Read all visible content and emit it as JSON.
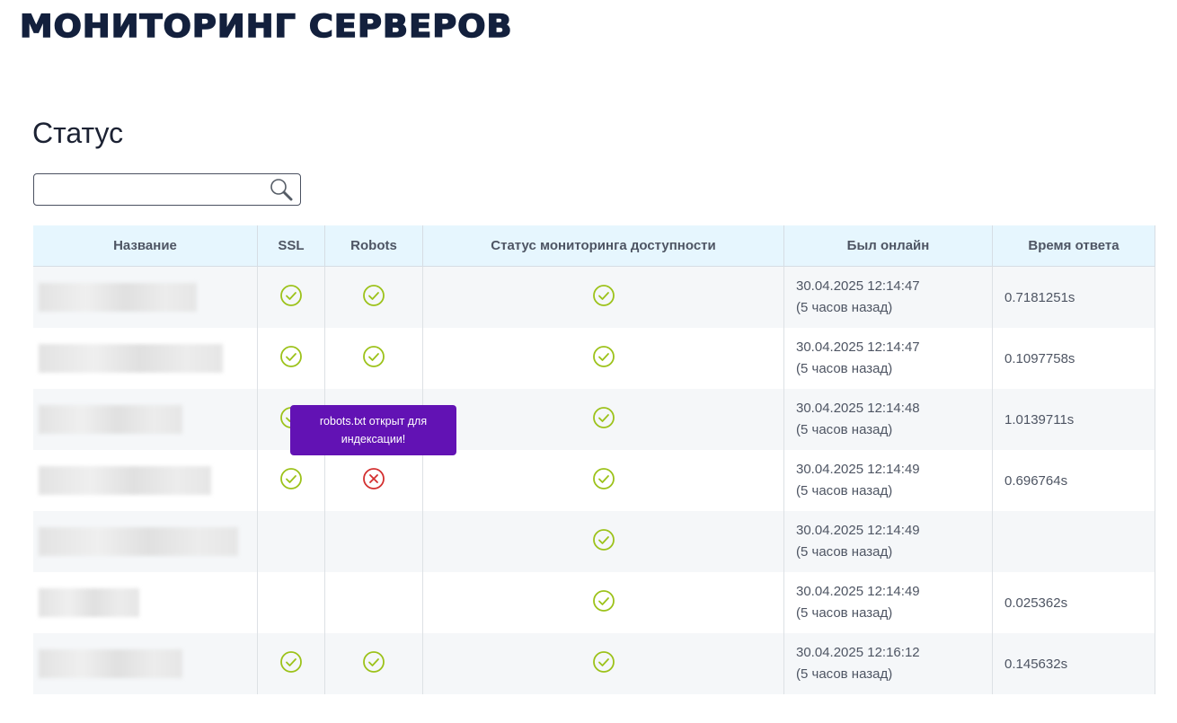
{
  "header": {
    "logo": "МОНИТОРИНГ СЕРВЕРОВ"
  },
  "page": {
    "title": "Статус"
  },
  "search": {
    "value": "",
    "placeholder": "",
    "icon": "search-icon"
  },
  "table": {
    "columns": [
      "Название",
      "SSL",
      "Robots",
      "Статус мониторинга доступности",
      "Был онлайн",
      "Время ответа"
    ],
    "rows": [
      {
        "ssl": "ok",
        "robots": "ok",
        "status": "ok",
        "date": "30.04.2025 12:14:47",
        "ago": "(5 часов назад)",
        "response": "0.7181251s"
      },
      {
        "ssl": "ok",
        "robots": "ok",
        "status": "ok",
        "date": "30.04.2025 12:14:47",
        "ago": "(5 часов назад)",
        "response": "0.1097758s"
      },
      {
        "ssl": "ok",
        "robots": "ok",
        "status": "ok",
        "date": "30.04.2025 12:14:48",
        "ago": "(5 часов назад)",
        "response": "1.0139711s"
      },
      {
        "ssl": "ok",
        "robots": "error",
        "status": "ok",
        "date": "30.04.2025 12:14:49",
        "ago": "(5 часов назад)",
        "response": "0.696764s"
      },
      {
        "ssl": "",
        "robots": "",
        "status": "ok",
        "date": "30.04.2025 12:14:49",
        "ago": "(5 часов назад)",
        "response": ""
      },
      {
        "ssl": "",
        "robots": "",
        "status": "ok",
        "date": "30.04.2025 12:14:49",
        "ago": "(5 часов назад)",
        "response": "0.025362s"
      },
      {
        "ssl": "ok",
        "robots": "ok",
        "status": "ok",
        "date": "30.04.2025 12:16:12",
        "ago": "(5 часов назад)",
        "response": "0.145632s"
      }
    ]
  },
  "tooltip": {
    "text": "robots.txt открыт для индексации!"
  },
  "colors": {
    "ok": "#9cc21a",
    "error": "#d32f2f",
    "tooltip": "#6212b4",
    "header_bg": "#e6f6fe"
  }
}
